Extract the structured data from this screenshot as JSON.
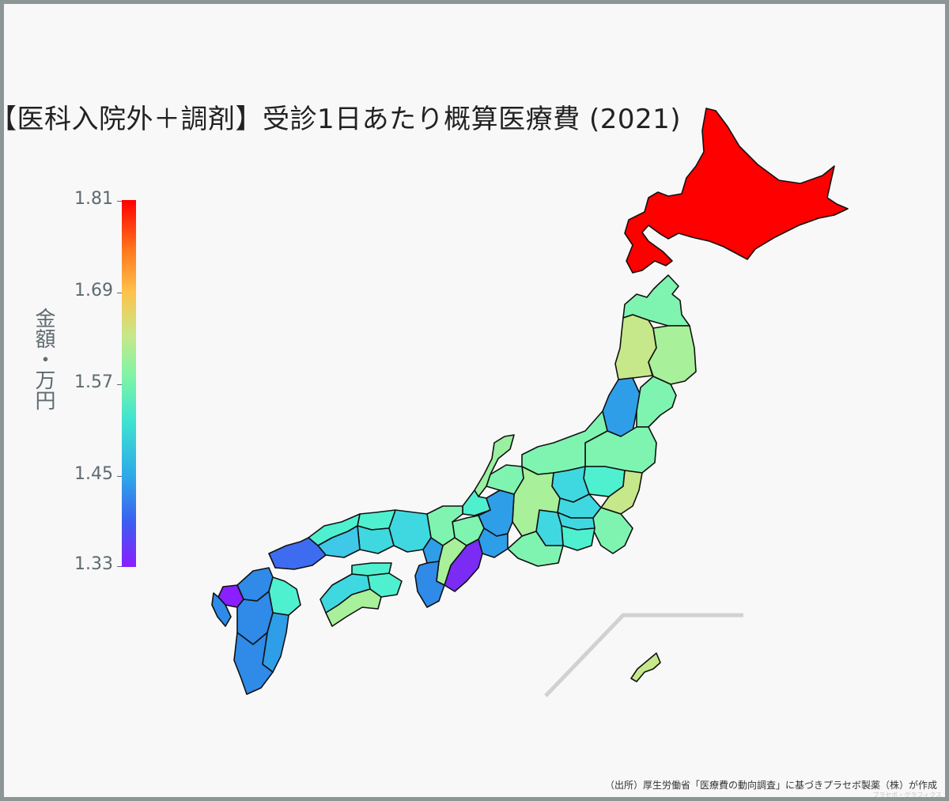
{
  "title": "【医科入院外＋調剤】受診1日あたり概算医療費 (2021)",
  "colorbar": {
    "title": "金額・万円",
    "ticks": [
      "1.81",
      "1.69",
      "1.57",
      "1.45",
      "1.33"
    ],
    "range": [
      1.33,
      1.81
    ],
    "colorscale": "rainbow"
  },
  "source_note": "（出所）厚生労働省「医療費の動向調査」に基づきプラセボ製薬（株）が作成",
  "watermark": "プラセボ・グラフィクス",
  "colors": {
    "max": "#ff0000",
    "min": "#8a1fff",
    "background": "#f8f8f8",
    "frame": "#8c9696"
  }
}
